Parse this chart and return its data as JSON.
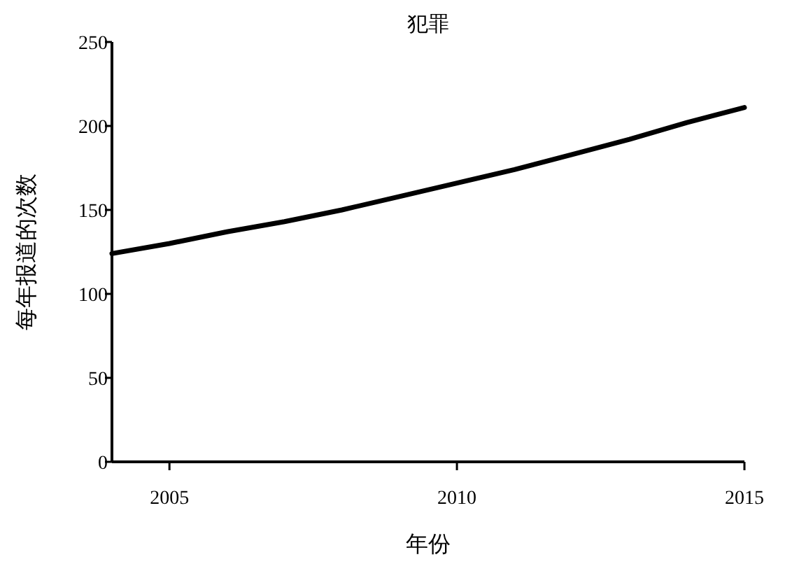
{
  "chart_data": {
    "type": "line",
    "title": "犯罪",
    "xlabel": "年份",
    "ylabel": "每年报道的次数",
    "x": [
      2004,
      2005,
      2006,
      2007,
      2008,
      2009,
      2010,
      2011,
      2012,
      2013,
      2014,
      2015
    ],
    "series": [
      {
        "color": "#000000",
        "values": [
          124,
          130,
          137,
          143,
          150,
          158,
          166,
          174,
          183,
          192,
          202,
          211
        ]
      }
    ],
    "xlim": [
      2004,
      2015
    ],
    "xticks": [
      2005,
      2010,
      2015
    ],
    "ylim": [
      0,
      250
    ],
    "yticks": [
      0,
      50,
      100,
      150,
      200,
      250
    ],
    "marker": "none",
    "line_style": "solid"
  }
}
